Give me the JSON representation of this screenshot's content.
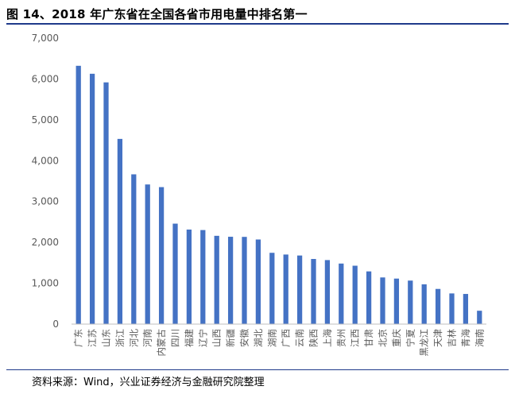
{
  "header": {
    "title": "图 14、2018 年广东省在全国各省市用电量中排名第一"
  },
  "footer": {
    "source": "资料来源：Wind，兴业证券经济与金融研究院整理"
  },
  "colors": {
    "bar": "#4472c4",
    "rule": "#1f3a8a",
    "axis": "#bfbfbf",
    "tick_text": "#595959"
  },
  "chart_data": {
    "type": "bar",
    "title": "",
    "xlabel": "",
    "ylabel": "",
    "ylim": [
      0,
      7000
    ],
    "yticks": [
      0,
      1000,
      2000,
      3000,
      4000,
      5000,
      6000,
      7000
    ],
    "ytick_labels": [
      "0",
      "1,000",
      "2,000",
      "3,000",
      "4,000",
      "5,000",
      "6,000",
      "7,000"
    ],
    "grid": false,
    "legend": "none",
    "categories": [
      "广东",
      "江苏",
      "山东",
      "浙江",
      "河北",
      "河南",
      "内蒙古",
      "四川",
      "福建",
      "辽宁",
      "山西",
      "新疆",
      "安徽",
      "湖北",
      "湖南",
      "广西",
      "云南",
      "陕西",
      "上海",
      "贵州",
      "江西",
      "甘肃",
      "北京",
      "重庆",
      "宁夏",
      "黑龙江",
      "天津",
      "吉林",
      "青海",
      "海南"
    ],
    "values": [
      6323,
      6128,
      5917,
      4533,
      3666,
      3418,
      3353,
      2459,
      2314,
      2302,
      2161,
      2138,
      2135,
      2071,
      1745,
      1703,
      1679,
      1594,
      1567,
      1482,
      1429,
      1290,
      1142,
      1114,
      1065,
      974,
      861,
      751,
      738,
      327
    ]
  }
}
